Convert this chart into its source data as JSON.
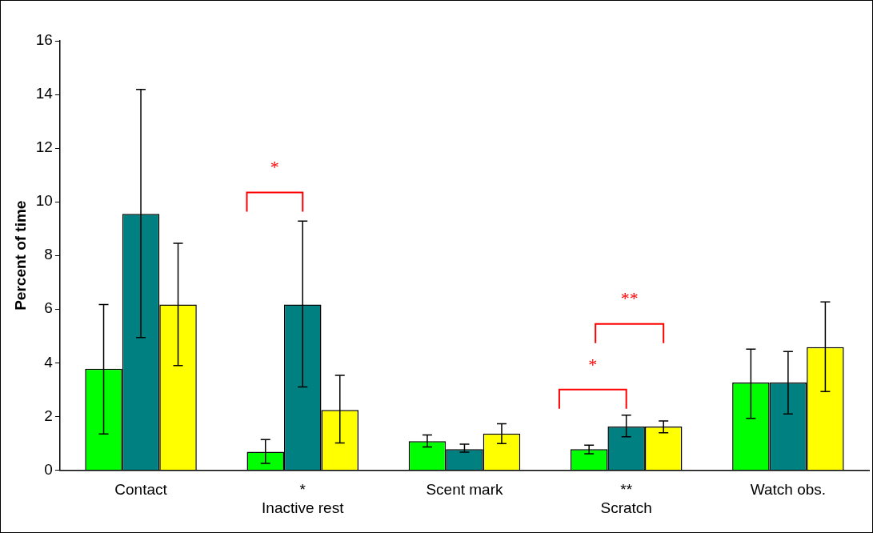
{
  "chart_data": {
    "type": "bar",
    "ylabel": "Percent of time",
    "categories": [
      "Contact",
      "*\nInactive rest",
      "Scent mark",
      "**\nScratch",
      "Watch obs."
    ],
    "series": [
      {
        "color": "#00ff00",
        "values": [
          3.78,
          0.68,
          1.08,
          0.78,
          3.26
        ],
        "errors": [
          [
            1.35,
            6.17
          ],
          [
            0.25,
            1.14
          ],
          [
            0.86,
            1.31
          ],
          [
            0.61,
            0.93
          ],
          [
            1.93,
            4.51
          ]
        ]
      },
      {
        "color": "#008080",
        "values": [
          9.55,
          6.17,
          0.78,
          1.62,
          3.26
        ],
        "errors": [
          [
            4.94,
            14.19
          ],
          [
            3.1,
            9.28
          ],
          [
            0.67,
            0.97
          ],
          [
            1.24,
            2.05
          ],
          [
            2.09,
            4.42
          ]
        ]
      },
      {
        "color": "#ffff00",
        "values": [
          6.17,
          2.24,
          1.36,
          1.62,
          4.58
        ],
        "errors": [
          [
            3.9,
            8.45
          ],
          [
            1.01,
            3.53
          ],
          [
            0.99,
            1.73
          ],
          [
            1.39,
            1.83
          ],
          [
            2.93,
            6.27
          ]
        ]
      }
    ],
    "annotations": [
      "*",
      "*",
      "**"
    ],
    "ylim": [
      0,
      16
    ],
    "yticks": [
      0,
      2,
      4,
      6,
      8,
      10,
      12,
      14,
      16
    ],
    "grid": false,
    "legend": false
  }
}
